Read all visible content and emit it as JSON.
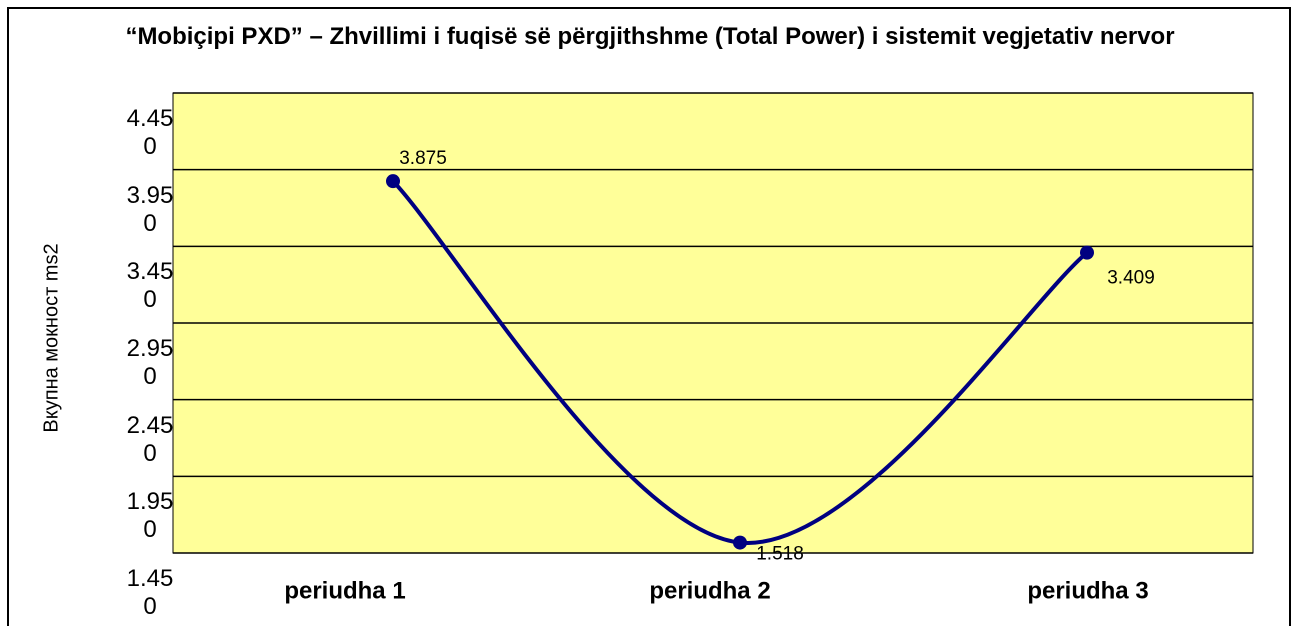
{
  "chart_data": {
    "type": "line",
    "title": "“Mobiçipi PXD” – Zhvillimi i fuqisë së përgjithshme (Total Power) i sistemit vegjetativ nervor",
    "y_label": "Вкупна мокност ms2",
    "categories": [
      "periudha 1",
      "periudha 2",
      "periudha 3"
    ],
    "series": [
      {
        "name": null,
        "color": "#000080",
        "values": [
          3.875,
          1.518,
          3.409
        ]
      }
    ],
    "ylim": [
      1.45,
      4.45
    ],
    "yticks": [
      {
        "value": 4.45,
        "label": "4.450"
      },
      {
        "value": 3.95,
        "label": "3.950"
      },
      {
        "value": 3.45,
        "label": "3.450"
      },
      {
        "value": 2.95,
        "label": "2.950"
      },
      {
        "value": 2.45,
        "label": "2.450"
      },
      {
        "value": 1.95,
        "label": "1.950"
      },
      {
        "value": 1.45,
        "label": "1.450"
      }
    ],
    "grid": true,
    "smooth": true,
    "plot_background": "#ffff99"
  }
}
